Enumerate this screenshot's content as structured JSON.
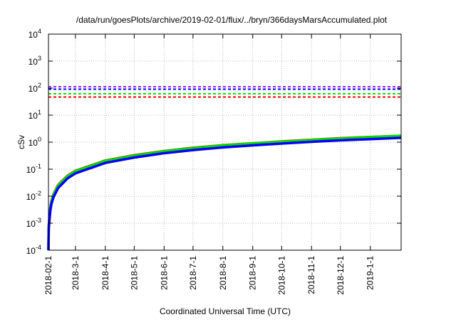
{
  "chart_data": {
    "type": "line",
    "title": "/data/run/goesPlots/archive/2019-02-01/flux/../bryn/366daysMarsAccumulated.plot",
    "xlabel": "Coordinated Universal Time (UTC)",
    "ylabel": "cSv",
    "yscale": "log",
    "ylim": [
      0.0001,
      10000
    ],
    "xlim_days": [
      0,
      366
    ],
    "grid": true,
    "y_ticks": [
      {
        "value": 0.0001,
        "base": "10",
        "exp": "-4"
      },
      {
        "value": 0.001,
        "base": "10",
        "exp": "-3"
      },
      {
        "value": 0.01,
        "base": "10",
        "exp": "-2"
      },
      {
        "value": 0.1,
        "base": "10",
        "exp": "-1"
      },
      {
        "value": 1,
        "base": "10",
        "exp": "0"
      },
      {
        "value": 10,
        "base": "10",
        "exp": "1"
      },
      {
        "value": 100,
        "base": "10",
        "exp": "2"
      },
      {
        "value": 1000,
        "base": "10",
        "exp": "3"
      },
      {
        "value": 10000,
        "base": "10",
        "exp": "4"
      }
    ],
    "x_ticks": [
      {
        "day": 0,
        "label": "2018-02-1"
      },
      {
        "day": 28,
        "label": "2018-3-1"
      },
      {
        "day": 59,
        "label": "2018-4-1"
      },
      {
        "day": 89,
        "label": "2018-5-1"
      },
      {
        "day": 120,
        "label": "2018-6-1"
      },
      {
        "day": 150,
        "label": "2018-7-1"
      },
      {
        "day": 181,
        "label": "2018-8-1"
      },
      {
        "day": 212,
        "label": "2018-9-1"
      },
      {
        "day": 242,
        "label": "2018-10-1"
      },
      {
        "day": 273,
        "label": "2018-11-1"
      },
      {
        "day": 303,
        "label": "2018-12-1"
      },
      {
        "day": 334,
        "label": "2019-1-1"
      }
    ],
    "reference_lines": [
      {
        "color": "#a020f0",
        "value": 113
      },
      {
        "color": "#0000ff",
        "value": 91
      },
      {
        "color": "#00dd00",
        "value": 62
      },
      {
        "color": "#ff0000",
        "value": 47
      }
    ],
    "x_days": [
      0,
      0.3,
      1,
      2,
      3,
      5,
      10,
      20,
      28,
      59,
      89,
      120,
      150,
      181,
      212,
      243,
      273,
      304,
      334,
      366
    ],
    "series": [
      {
        "name": "red",
        "color": "#ff0000",
        "values": [
          0.0001,
          0.0008,
          0.0017,
          0.0039,
          0.0065,
          0.0115,
          0.026,
          0.058,
          0.087,
          0.21,
          0.33,
          0.47,
          0.62,
          0.77,
          0.91,
          1.07,
          1.23,
          1.4,
          1.56,
          1.73
        ]
      },
      {
        "name": "green",
        "color": "#00dd00",
        "values": [
          0.0001,
          0.0008,
          0.0016,
          0.0037,
          0.0062,
          0.011,
          0.025,
          0.056,
          0.085,
          0.205,
          0.32,
          0.46,
          0.61,
          0.76,
          0.9,
          1.05,
          1.21,
          1.38,
          1.54,
          1.72
        ]
      },
      {
        "name": "blue",
        "color": "#0000ff",
        "values": [
          0.0001,
          0.0006,
          0.0013,
          0.003,
          0.005,
          0.0088,
          0.02,
          0.046,
          0.07,
          0.17,
          0.27,
          0.39,
          0.51,
          0.64,
          0.76,
          0.89,
          1.03,
          1.17,
          1.3,
          1.45
        ]
      }
    ]
  }
}
